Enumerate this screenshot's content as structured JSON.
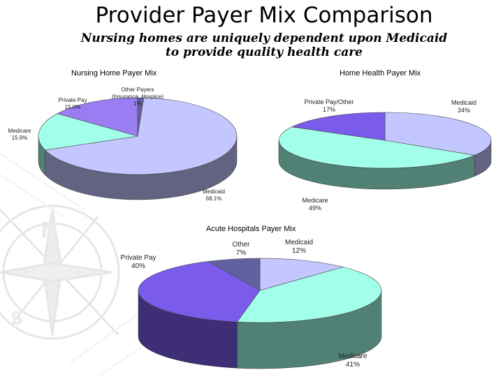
{
  "slide": {
    "title": "Provider Payer Mix Comparison",
    "subtitle_line1": "Nursing homes are uniquely dependent upon Medicaid",
    "subtitle_line2": "to provide quality health care"
  },
  "colors": {
    "medicaid": "#c4c6ff",
    "medicare": "#a2ffe9",
    "private": "#9b7df3",
    "other": "#61619f",
    "privateDeep": "#7a5bea"
  },
  "chart_data": [
    {
      "type": "pie",
      "title": "Nursing Home Payer Mix",
      "slices": [
        {
          "name": "Medicaid",
          "value": 68.1,
          "label_line1": "Medicaid",
          "label_line2": "68.1%"
        },
        {
          "name": "Medicare",
          "value": 15.9,
          "label_line1": "Medicare",
          "label_line2": "15.9%"
        },
        {
          "name": "Private Pay",
          "value": 15.0,
          "label_line1": "Private Pay",
          "label_line2": "15.0%"
        },
        {
          "name": "Other Payers (Insurance, Hospice)",
          "value": 1,
          "label_line1": "Other Payers",
          "label_line2": "(Insurance, Hospice)",
          "label_line3": "1%"
        }
      ]
    },
    {
      "type": "pie",
      "title": "Home Health Payer Mix",
      "slices": [
        {
          "name": "Medicaid",
          "value": 34,
          "label_line1": "Medicaid",
          "label_line2": "34%"
        },
        {
          "name": "Medicare",
          "value": 49,
          "label_line1": "Medicare",
          "label_line2": "49%"
        },
        {
          "name": "Private Pay/Other",
          "value": 17,
          "label_line1": "Private Pay/Other",
          "label_line2": "17%"
        }
      ]
    },
    {
      "type": "pie",
      "title": "Acute Hospitals Payer Mix",
      "slices": [
        {
          "name": "Medicaid",
          "value": 12,
          "label_line1": "Medicaid",
          "label_line2": "12%"
        },
        {
          "name": "Medicare",
          "value": 41,
          "label_line1": "Medicare",
          "label_line2": "41%"
        },
        {
          "name": "Private Pay",
          "value": 40,
          "label_line1": "Private Pay",
          "label_line2": "40%"
        },
        {
          "name": "Other",
          "value": 7,
          "label_line1": "Other",
          "label_line2": "7%"
        }
      ]
    }
  ]
}
